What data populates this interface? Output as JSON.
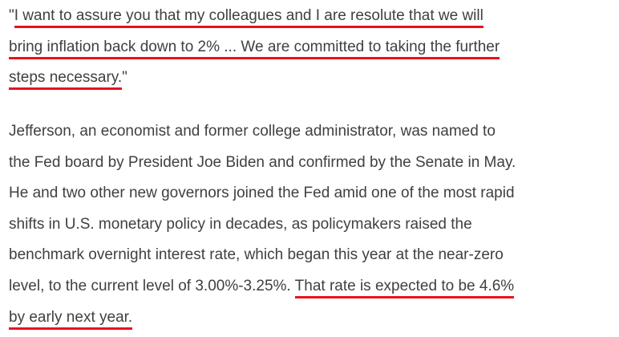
{
  "accent_color": "#e8121f",
  "quote": {
    "open_quote": "\"",
    "line1": "I want to assure you that my colleagues and I are resolute that we will",
    "line2": "bring inflation back down to 2% ... We are committed to taking the further",
    "line3": "steps necessary.",
    "close_quote": "\""
  },
  "body": {
    "lines": [
      "Jefferson, an economist and former college administrator, was named to",
      "the Fed board by President Joe Biden and confirmed by the Senate in May.",
      "He and two other new governors joined the Fed amid one of the most rapid",
      "shifts in U.S. monetary policy in decades, as policymakers raised the",
      "benchmark overnight interest rate, which began this year at the near-zero"
    ],
    "line6_plain": "level, to the current level of 3.00%-3.25%. ",
    "line6_highlight": "That rate is expected to be 4.6%",
    "line7_highlight": "by early next year."
  }
}
